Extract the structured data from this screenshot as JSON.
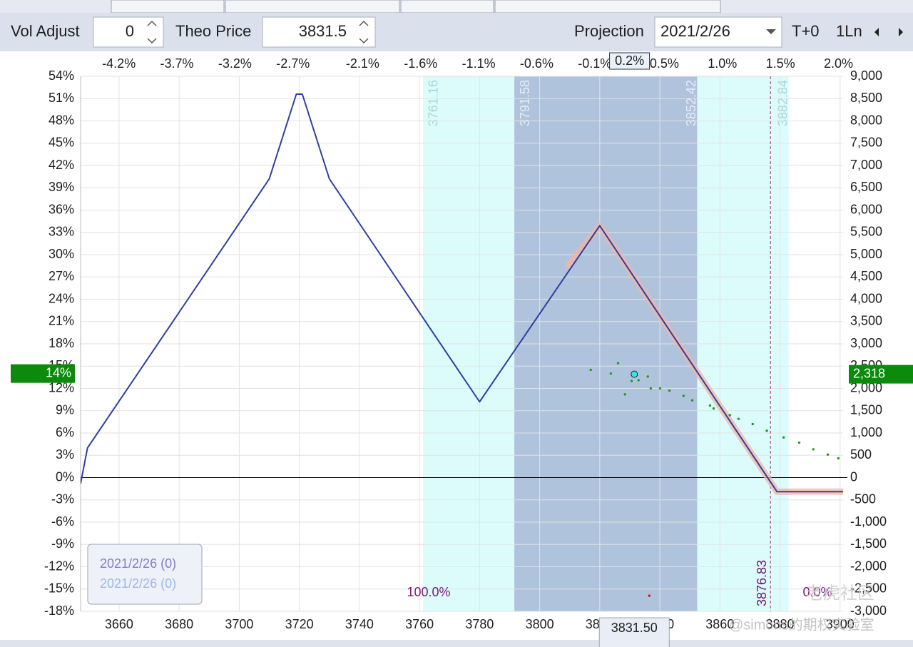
{
  "toolbar": {
    "vol_adjust_label": "Vol Adjust",
    "vol_adjust": "0",
    "theo_price_label": "Theo Price",
    "theo_price": "3831.5",
    "projection_label": "Projection",
    "projection_date": "2021/2/26",
    "mode": "T+0",
    "lines": "1Ln"
  },
  "watermark": [
    "老虎社区",
    "@simons的期权实验室"
  ],
  "chart_data": {
    "type": "line",
    "xlim": [
      3647.2,
      3901
    ],
    "xticks": [
      3660,
      3680,
      3700,
      3720,
      3740,
      3760,
      3780,
      3800,
      3820,
      3840,
      3860,
      3880,
      3900
    ],
    "x2lim": [
      -4.53,
      2.04
    ],
    "x2ticks": [
      {
        "value": -4.2,
        "label": "-4.2%"
      },
      {
        "value": -3.7,
        "label": "-3.7%"
      },
      {
        "value": -3.2,
        "label": "-3.2%"
      },
      {
        "value": -2.7,
        "label": "-2.7%"
      },
      {
        "value": -2.1,
        "label": "-2.1%"
      },
      {
        "value": -1.6,
        "label": "-1.6%"
      },
      {
        "value": -1.1,
        "label": "-1.1%"
      },
      {
        "value": -0.6,
        "label": "-0.6%"
      },
      {
        "value": -0.1,
        "label": "-0.1%"
      },
      {
        "value": 0.5,
        "label": "0.5%"
      },
      {
        "value": 1.0,
        "label": "1.0%"
      },
      {
        "value": 1.5,
        "label": "1.5%"
      },
      {
        "value": 2.0,
        "label": "2.0%"
      }
    ],
    "ylim": [
      -18,
      54
    ],
    "yticks": [
      {
        "value": 54,
        "label": "54%"
      },
      {
        "value": 51,
        "label": "51%"
      },
      {
        "value": 48,
        "label": "48%"
      },
      {
        "value": 45,
        "label": "45%"
      },
      {
        "value": 42,
        "label": "42%"
      },
      {
        "value": 39,
        "label": "39%"
      },
      {
        "value": 36,
        "label": "36%"
      },
      {
        "value": 33,
        "label": "33%"
      },
      {
        "value": 30,
        "label": "30%"
      },
      {
        "value": 27,
        "label": "27%"
      },
      {
        "value": 24,
        "label": "24%"
      },
      {
        "value": 21,
        "label": "21%"
      },
      {
        "value": 18,
        "label": "18%"
      },
      {
        "value": 15,
        "label": "15%"
      },
      {
        "value": 12,
        "label": "12%"
      },
      {
        "value": 9,
        "label": "9%"
      },
      {
        "value": 6,
        "label": "6%"
      },
      {
        "value": 3,
        "label": "3%"
      },
      {
        "value": 0,
        "label": "0%"
      },
      {
        "value": -3,
        "label": "-3%"
      },
      {
        "value": -6,
        "label": "-6%"
      },
      {
        "value": -9,
        "label": "-9%"
      },
      {
        "value": -12,
        "label": "-12%"
      },
      {
        "value": -15,
        "label": "-15%"
      },
      {
        "value": -18,
        "label": "-18%"
      }
    ],
    "y2lim": [
      -3000,
      9000
    ],
    "y2ticks": [
      {
        "value": 9000,
        "label": "9,000"
      },
      {
        "value": 8500,
        "label": "8,500"
      },
      {
        "value": 8000,
        "label": "8,000"
      },
      {
        "value": 7500,
        "label": "7,500"
      },
      {
        "value": 7000,
        "label": "7,000"
      },
      {
        "value": 6500,
        "label": "6,500"
      },
      {
        "value": 6000,
        "label": "6,000"
      },
      {
        "value": 5500,
        "label": "5,500"
      },
      {
        "value": 5000,
        "label": "5,000"
      },
      {
        "value": 4500,
        "label": "4,500"
      },
      {
        "value": 4000,
        "label": "4,000"
      },
      {
        "value": 3500,
        "label": "3,500"
      },
      {
        "value": 3000,
        "label": "3,000"
      },
      {
        "value": 2500,
        "label": "2,500"
      },
      {
        "value": 2000,
        "label": "2,000"
      },
      {
        "value": 1500,
        "label": "1,500"
      },
      {
        "value": 1000,
        "label": "1,000"
      },
      500,
      0,
      -500,
      {
        "value": -1000,
        "label": "-1,000"
      },
      {
        "value": -1500,
        "label": "-1,500"
      },
      {
        "value": -2000,
        "label": "-2,000"
      },
      {
        "value": -2500,
        "label": "-2,500"
      },
      {
        "value": -3000,
        "label": "-3,000"
      }
    ],
    "grid": true,
    "bands": [
      {
        "from": 3761.16,
        "to": 3882.84,
        "color": "#dcfcfc",
        "label_color": "#a9d6d8"
      },
      {
        "from": 3791.58,
        "to": 3852.42,
        "color": "#b0c3dc",
        "label_color": "#e6edf6"
      }
    ],
    "breakeven": {
      "value": 3876.83,
      "color": "#9b2a5c",
      "label_color": "#6d1670"
    },
    "probabilities": [
      {
        "value": 100,
        "label": "100.0%"
      },
      {
        "value": 0,
        "label": "0.0%"
      }
    ],
    "series": [
      {
        "name": "2021/2/26 (0)",
        "color": "#2f3f9f",
        "legend_color": "#7f7fc4",
        "x": [
          3647.2,
          3649.5,
          3710,
          3719,
          3721,
          3730,
          3780,
          3820,
          3879,
          3901
        ],
        "values": [
          -0.8,
          4,
          40.2,
          51.6,
          51.6,
          40.2,
          10.2,
          33.9,
          -1.9,
          -1.9
        ]
      },
      {
        "name": "2021/2/26 (0)",
        "color": "#f3b6a4",
        "legend_color": "#9bb9e2",
        "x": [
          3809,
          3820,
          3879,
          3901
        ],
        "values": [
          28.3,
          33.9,
          -1.9,
          -1.9
        ]
      }
    ],
    "points": [
      {
        "color": "#1f9a1f",
        "x": [
          3817.0,
          3826.1,
          3823.7,
          3828.4,
          3830.6,
          3832.9,
          3836.0,
          3837.0,
          3840.1,
          3843.2,
          3847.9,
          3850.8,
          3856.7,
          3857.9,
          3863.3,
          3866.2,
          3870.9,
          3875.6,
          3881.2,
          3886.4,
          3891.1,
          3895.9,
          3899.4
        ],
        "values": [
          14.5,
          15.4,
          14.0,
          11.2,
          13.0,
          13.1,
          13.6,
          12.0,
          12.0,
          11.7,
          11.0,
          10.4,
          9.7,
          9.3,
          8.4,
          7.9,
          7.2,
          6.3,
          5.4,
          4.7,
          3.8,
          3.1,
          2.6
        ]
      },
      {
        "color": "#e01010",
        "x": [
          3836.5
        ],
        "values": [
          -15.9
        ]
      }
    ],
    "current_pct": {
      "value": 14,
      "label": "14%"
    },
    "current_pl": {
      "value": 2318,
      "label": "2,318"
    },
    "price_marker": {
      "value": 3831.5,
      "label": "3831.50"
    },
    "pct_marker": {
      "value": 0.2,
      "label": "0.2%"
    }
  }
}
